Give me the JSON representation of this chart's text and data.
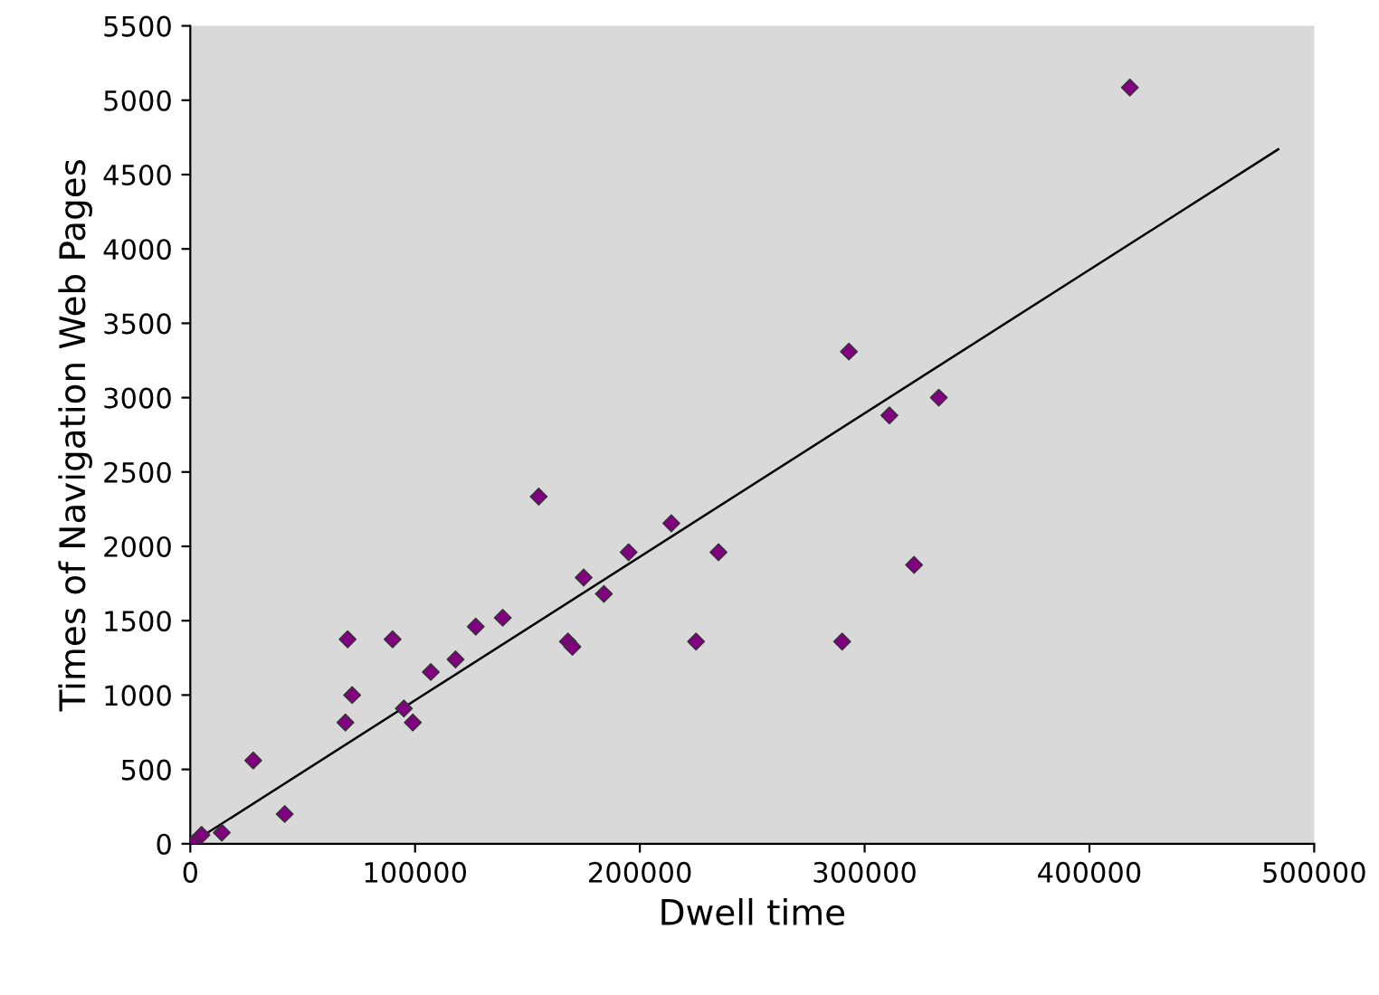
{
  "chart_data": {
    "type": "scatter",
    "xlabel": "Dwell time",
    "ylabel": "Times of Navigation Web Pages",
    "xlim": [
      0,
      500000
    ],
    "ylim": [
      0,
      5500
    ],
    "xticks": [
      0,
      100000,
      200000,
      300000,
      400000,
      500000
    ],
    "yticks": [
      0,
      500,
      1000,
      1500,
      2000,
      2500,
      3000,
      3500,
      4000,
      4500,
      5000,
      5500
    ],
    "grid": false,
    "legend": false,
    "marker": "diamond",
    "series": [
      {
        "color": "#800080",
        "x": [
          1000,
          5000,
          14000,
          28000,
          42000,
          69000,
          70000,
          72000,
          90000,
          95000,
          99000,
          107000,
          118000,
          127000,
          139000,
          155000,
          168000,
          170000,
          175000,
          184000,
          195000,
          214000,
          225000,
          235000,
          290000,
          293000,
          311000,
          322000,
          333000,
          418000
        ],
        "values": [
          0,
          60,
          75,
          560,
          200,
          815,
          1375,
          1000,
          1375,
          910,
          815,
          1155,
          1240,
          1460,
          1520,
          2335,
          1360,
          1325,
          1790,
          1680,
          1960,
          2155,
          1360,
          1960,
          1360,
          3310,
          2880,
          1875,
          3000,
          5085
        ]
      },
      {
        "type": "line",
        "color": "#000000",
        "marker": "none",
        "x": [
          0,
          484000
        ],
        "values": [
          0,
          4670
        ]
      }
    ]
  }
}
